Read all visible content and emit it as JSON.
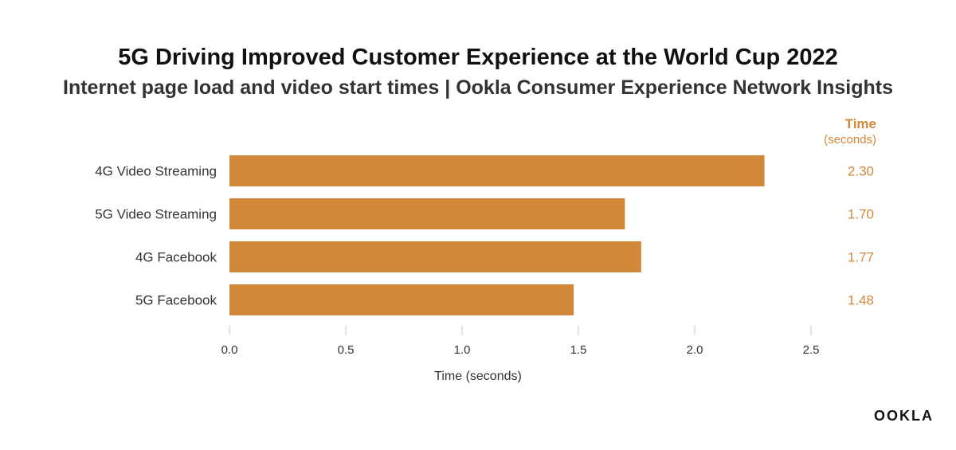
{
  "chart_data": {
    "type": "bar",
    "orientation": "horizontal",
    "title": "5G Driving Improved Customer Experience at the World Cup 2022",
    "subtitle": "Internet page load and video start times | Ookla Consumer Experience Network Insights",
    "categories": [
      "4G Video Streaming",
      "5G Video Streaming",
      "4G Facebook",
      "5G Facebook"
    ],
    "values": [
      2.3,
      1.7,
      1.77,
      1.48
    ],
    "value_labels": [
      "2.30",
      "1.70",
      "1.77",
      "1.48"
    ],
    "value_header": "Time",
    "value_header_unit": "(seconds)",
    "xlabel": "Time (seconds)",
    "xlim": [
      0,
      2.5
    ],
    "xticks": [
      0.0,
      0.5,
      1.0,
      1.5,
      2.0,
      2.5
    ],
    "xtick_labels": [
      "0.0",
      "0.5",
      "1.0",
      "1.5",
      "2.0",
      "2.5"
    ],
    "bar_color": "#d2883a",
    "value_color": "#d2883a"
  },
  "brand": {
    "logo_text": "OOKLA"
  }
}
